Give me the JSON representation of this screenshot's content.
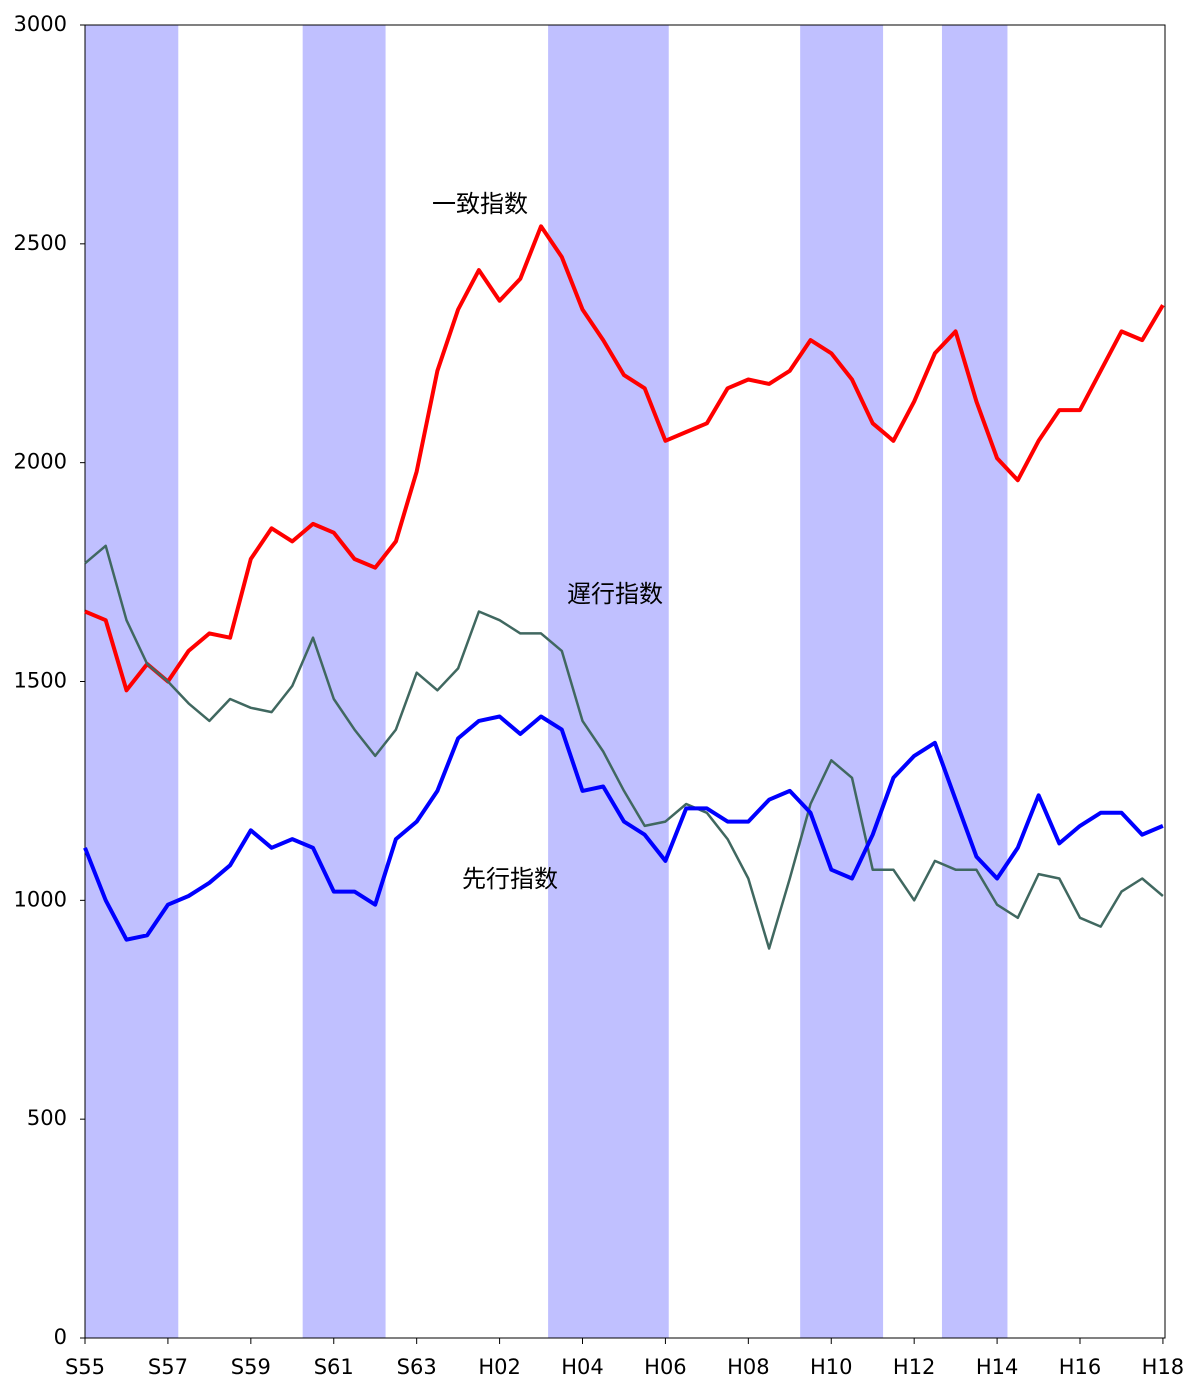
{
  "chart_data": {
    "type": "line",
    "x": [
      1980,
      1980.5,
      1981,
      1981.5,
      1982,
      1982.5,
      1983,
      1983.5,
      1984,
      1984.5,
      1985,
      1985.5,
      1986,
      1986.5,
      1987,
      1987.5,
      1988,
      1988.5,
      1989,
      1989.5,
      1990,
      1990.5,
      1991,
      1991.5,
      1992,
      1992.5,
      1993,
      1993.5,
      1994,
      1994.5,
      1995,
      1995.5,
      1996,
      1996.5,
      1997,
      1997.5,
      1998,
      1998.5,
      1999,
      1999.5,
      2000,
      2000.5,
      2001,
      2001.5,
      2002,
      2002.5,
      2003,
      2003.5,
      2004,
      2004.5,
      2005,
      2005.5,
      2006
    ],
    "series": [
      {
        "name": "一致指数",
        "color": "#ff0000",
        "values": [
          1660,
          1640,
          1480,
          1540,
          1500,
          1570,
          1610,
          1600,
          1780,
          1850,
          1820,
          1860,
          1840,
          1780,
          1760,
          1820,
          1980,
          2210,
          2350,
          2440,
          2370,
          2420,
          2540,
          2470,
          2350,
          2280,
          2200,
          2170,
          2050,
          2070,
          2090,
          2170,
          2190,
          2180,
          2210,
          2280,
          2250,
          2190,
          2090,
          2050,
          2140,
          2250,
          2300,
          2140,
          2010,
          1960,
          2050,
          2120,
          2120,
          2210,
          2300,
          2280,
          2360
        ]
      },
      {
        "name": "遅行指数",
        "color": "#406860",
        "values": [
          1770,
          1810,
          1640,
          1540,
          1500,
          1450,
          1410,
          1460,
          1440,
          1430,
          1490,
          1600,
          1460,
          1390,
          1330,
          1390,
          1520,
          1480,
          1530,
          1660,
          1640,
          1610,
          1610,
          1570,
          1410,
          1340,
          1250,
          1170,
          1180,
          1220,
          1200,
          1140,
          1050,
          890,
          1050,
          1220,
          1320,
          1280,
          1070,
          1070,
          1000,
          1090,
          1070,
          1070,
          990,
          960,
          1060,
          1050,
          960,
          940,
          1020,
          1050,
          1010
        ]
      },
      {
        "name": "先行指数",
        "color": "#0000ff",
        "values": [
          1120,
          1000,
          910,
          920,
          990,
          1010,
          1040,
          1080,
          1160,
          1120,
          1140,
          1120,
          1020,
          1020,
          990,
          1140,
          1180,
          1250,
          1370,
          1410,
          1420,
          1380,
          1420,
          1390,
          1250,
          1260,
          1180,
          1150,
          1090,
          1210,
          1210,
          1180,
          1180,
          1230,
          1250,
          1200,
          1070,
          1050,
          1150,
          1280,
          1330,
          1360,
          1230,
          1100,
          1050,
          1120,
          1240,
          1130,
          1170,
          1200,
          1200,
          1150,
          1170
        ]
      }
    ],
    "shaded_periods": [
      [
        1980,
        1982.25
      ],
      [
        1985.25,
        1987.25
      ],
      [
        1991.17,
        1994.08
      ],
      [
        1997.25,
        1999.25
      ],
      [
        2000.67,
        2002.25
      ]
    ],
    "shade_color": "#c0c0ff",
    "xlim": [
      1980,
      2006.05
    ],
    "xticks": [
      {
        "value": 1980,
        "label": "S55"
      },
      {
        "value": 1982,
        "label": "S57"
      },
      {
        "value": 1984,
        "label": "S59"
      },
      {
        "value": 1986,
        "label": "S61"
      },
      {
        "value": 1988,
        "label": "S63"
      },
      {
        "value": 1990,
        "label": "H02"
      },
      {
        "value": 1992,
        "label": "H04"
      },
      {
        "value": 1994,
        "label": "H06"
      },
      {
        "value": 1996,
        "label": "H08"
      },
      {
        "value": 1998,
        "label": "H10"
      },
      {
        "value": 2000,
        "label": "H12"
      },
      {
        "value": 2002,
        "label": "H14"
      },
      {
        "value": 2004,
        "label": "H16"
      },
      {
        "value": 2006,
        "label": "H18"
      }
    ],
    "ylim": [
      0,
      3000
    ],
    "yticks": [
      0,
      500,
      1000,
      1500,
      2000,
      2500,
      3000
    ],
    "grid": false
  }
}
